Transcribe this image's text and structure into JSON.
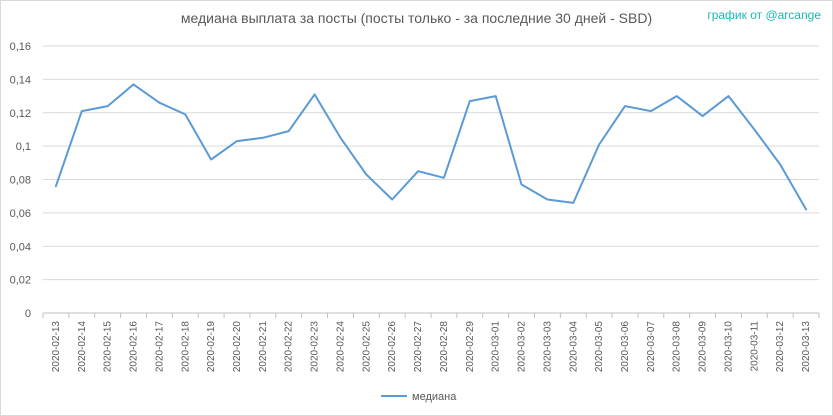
{
  "watermark": "график от @arcange",
  "chart_data": {
    "type": "line",
    "title": "медиана выплата за посты  (посты только - за последние 30 дней - SBD)",
    "xlabel": "",
    "ylabel": "",
    "ylim": [
      0,
      0.16
    ],
    "y_ticks": [
      "0",
      "0,02",
      "0,04",
      "0,06",
      "0,08",
      "0,1",
      "0,12",
      "0,14",
      "0,16"
    ],
    "categories": [
      "2020-02-13",
      "2020-02-14",
      "2020-02-15",
      "2020-02-16",
      "2020-02-17",
      "2020-02-18",
      "2020-02-19",
      "2020-02-20",
      "2020-02-21",
      "2020-02-22",
      "2020-02-23",
      "2020-02-24",
      "2020-02-25",
      "2020-02-26",
      "2020-02-27",
      "2020-02-28",
      "2020-02-29",
      "2020-03-01",
      "2020-03-02",
      "2020-03-03",
      "2020-03-04",
      "2020-03-05",
      "2020-03-06",
      "2020-03-07",
      "2020-03-08",
      "2020-03-09",
      "2020-03-10",
      "2020-03-11",
      "2020-03-12",
      "2020-03-13"
    ],
    "series": [
      {
        "name": "медиана",
        "color": "#5b9bd5",
        "values": [
          0.076,
          0.121,
          0.124,
          0.137,
          0.126,
          0.119,
          0.092,
          0.103,
          0.105,
          0.109,
          0.131,
          0.105,
          0.083,
          0.068,
          0.085,
          0.081,
          0.127,
          0.13,
          0.077,
          0.068,
          0.066,
          0.101,
          0.124,
          0.121,
          0.13,
          0.118,
          0.13,
          0.11,
          0.089,
          0.062
        ]
      }
    ],
    "grid": true,
    "legend_position": "bottom"
  }
}
